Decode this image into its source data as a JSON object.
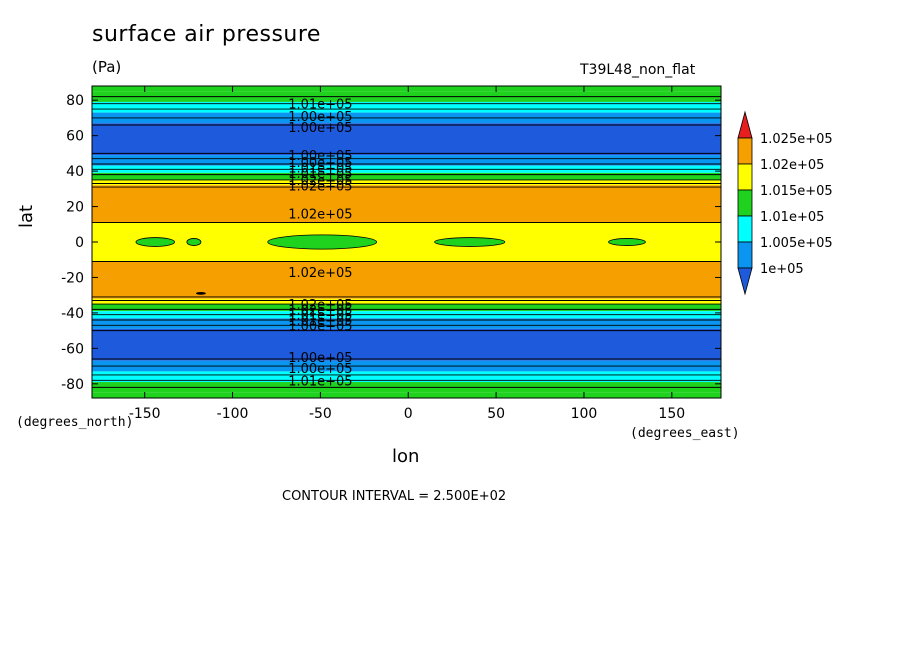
{
  "chart_data": {
    "type": "heatmap",
    "title": "surface air pressure",
    "units": "(Pa)",
    "experiment": "T39L48_non_flat",
    "xlabel": "lon",
    "ylabel": "lat",
    "x_units": "(degrees_east)",
    "y_units": "(degrees_north)",
    "xlim": [
      -180,
      178
    ],
    "ylim": [
      -88,
      88
    ],
    "x_ticks": [
      -150,
      -100,
      -50,
      0,
      50,
      100,
      150
    ],
    "y_ticks": [
      -80,
      -60,
      -40,
      -20,
      0,
      20,
      40,
      60,
      80
    ],
    "contour_interval_text": "CONTOUR INTERVAL = 2.500E+02",
    "colorbar": {
      "labels": [
        "1.025e+05",
        "1.02e+05",
        "1.015e+05",
        "1.01e+05",
        "1.005e+05",
        "1e+05"
      ],
      "colors": [
        "#e61e1e",
        "#f5a000",
        "#ffff00",
        "#1ed21e",
        "#00ffff",
        "#0a96f0",
        "#1e5adc"
      ]
    },
    "bands": [
      {
        "lat": [
          85,
          88
        ],
        "value": 101000,
        "color": "#1ed21e"
      },
      {
        "lat": [
          79,
          85
        ],
        "value": 101250,
        "color": "#1ed21e"
      },
      {
        "lat": [
          73,
          79
        ],
        "value": 100750,
        "color": "#00ffff"
      },
      {
        "lat": [
          67,
          73
        ],
        "value": 100250,
        "color": "#0a96f0"
      },
      {
        "lat": [
          49,
          67
        ],
        "value": 99500,
        "color": "#1e5adc"
      },
      {
        "lat": [
          43,
          49
        ],
        "value": 100250,
        "color": "#0a96f0"
      },
      {
        "lat": [
          39,
          43
        ],
        "value": 100750,
        "color": "#00ffff"
      },
      {
        "lat": [
          35,
          39
        ],
        "value": 101250,
        "color": "#1ed21e"
      },
      {
        "lat": [
          32,
          35
        ],
        "value": 101750,
        "color": "#ffff00"
      },
      {
        "lat": [
          11,
          32
        ],
        "value": 102250,
        "color": "#f5a000"
      },
      {
        "lat": [
          -11,
          11
        ],
        "value": 101750,
        "color": "#ffff00"
      },
      {
        "lat": [
          -32,
          -11
        ],
        "value": 102250,
        "color": "#f5a000"
      },
      {
        "lat": [
          -35,
          -32
        ],
        "value": 101750,
        "color": "#ffff00"
      },
      {
        "lat": [
          -39,
          -35
        ],
        "value": 101250,
        "color": "#1ed21e"
      },
      {
        "lat": [
          -43,
          -39
        ],
        "value": 100750,
        "color": "#00ffff"
      },
      {
        "lat": [
          -49,
          -43
        ],
        "value": 100250,
        "color": "#0a96f0"
      },
      {
        "lat": [
          -67,
          -49
        ],
        "value": 99500,
        "color": "#1e5adc"
      },
      {
        "lat": [
          -73,
          -67
        ],
        "value": 100250,
        "color": "#0a96f0"
      },
      {
        "lat": [
          -79,
          -73
        ],
        "value": 100750,
        "color": "#00ffff"
      },
      {
        "lat": [
          -85,
          -79
        ],
        "value": 101250,
        "color": "#1ed21e"
      },
      {
        "lat": [
          -88,
          -85
        ],
        "value": 101000,
        "color": "#1ed21e"
      }
    ],
    "contour_lats": [
      82,
      78,
      75,
      70,
      66,
      50,
      47,
      44,
      41,
      38,
      35,
      33,
      31,
      11,
      -11,
      -31,
      -33,
      -35,
      -38,
      -41,
      -44,
      -47,
      -50,
      -66,
      -70,
      -75,
      -78,
      -82
    ],
    "equatorial_patches": [
      {
        "lon": [
          -155,
          -133
        ],
        "lat": [
          -2.5,
          2.5
        ],
        "value": 101250
      },
      {
        "lon": [
          -126,
          -118
        ],
        "lat": [
          -2,
          2
        ],
        "value": 101250
      },
      {
        "lon": [
          -80,
          -18
        ],
        "lat": [
          -4,
          4
        ],
        "value": 101250
      },
      {
        "lon": [
          15,
          55
        ],
        "lat": [
          -2.5,
          2.5
        ],
        "value": 101250
      },
      {
        "lon": [
          114,
          135
        ],
        "lat": [
          -2,
          2
        ],
        "value": 101250
      }
    ],
    "contour_labels": [
      {
        "text": "1.01e+05",
        "lon": -50,
        "lat": 78
      },
      {
        "text": "1.00e+05",
        "lon": -50,
        "lat": 71
      },
      {
        "text": "1.00e+05",
        "lon": -50,
        "lat": 65
      },
      {
        "text": "1.00e+05",
        "lon": -50,
        "lat": 49
      },
      {
        "text": "1.00e+05",
        "lon": -50,
        "lat": 45
      },
      {
        "text": "1.01e+05",
        "lon": -50,
        "lat": 42
      },
      {
        "text": "1.01e+05",
        "lon": -50,
        "lat": 39
      },
      {
        "text": "1.02e+05",
        "lon": -50,
        "lat": 35
      },
      {
        "text": "1.02e+05",
        "lon": -50,
        "lat": 32
      },
      {
        "text": "1.02e+05",
        "lon": -50,
        "lat": 16
      },
      {
        "text": "1.02e+05",
        "lon": -50,
        "lat": -17
      },
      {
        "text": "1.02e+05",
        "lon": -50,
        "lat": -35
      },
      {
        "text": "1.02e+05",
        "lon": -50,
        "lat": -38
      },
      {
        "text": "1.01e+05",
        "lon": -50,
        "lat": -41
      },
      {
        "text": "1.01e+05",
        "lon": -50,
        "lat": -44
      },
      {
        "text": "1.00e+05",
        "lon": -50,
        "lat": -47
      },
      {
        "text": "1.00e+05",
        "lon": -50,
        "lat": -65
      },
      {
        "text": "1.00e+05",
        "lon": -50,
        "lat": -71
      },
      {
        "text": "1.01e+05",
        "lon": -50,
        "lat": -78
      }
    ]
  }
}
